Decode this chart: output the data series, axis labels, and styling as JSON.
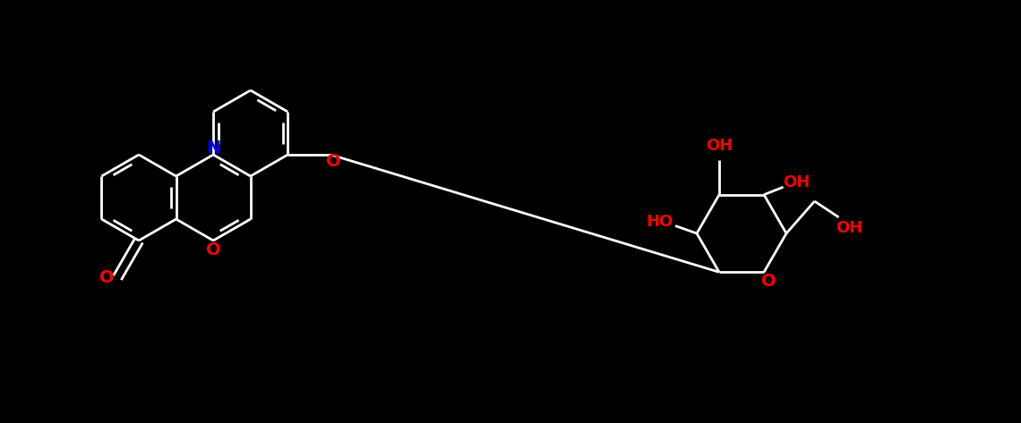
{
  "bg_color": "#000000",
  "bond_color": "#ffffff",
  "N_color": "#0000ff",
  "O_color": "#ff0000",
  "figsize": [
    11.4,
    4.73
  ],
  "dpi": 100,
  "bond_lw": 2.0,
  "font_size": 14,
  "font_weight": "bold"
}
